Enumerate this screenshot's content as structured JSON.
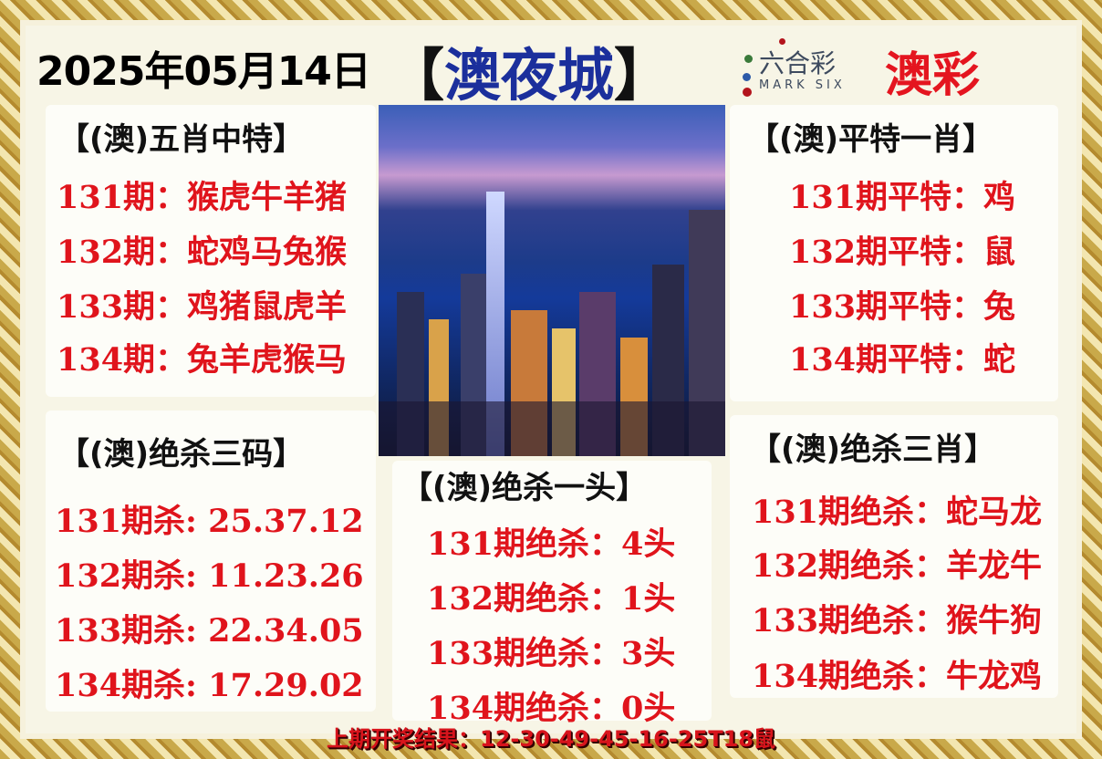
{
  "date": "2025年05月14日",
  "title": {
    "left_bracket": "【",
    "name": "澳夜城",
    "right_bracket": "】"
  },
  "logo": {
    "chinese": "六合彩",
    "english": "MARK SIX",
    "brand": "澳彩"
  },
  "panels": {
    "five_zodiac": {
      "header": "【(澳)五肖中特】",
      "rows": [
        "131期：猴虎牛羊猪",
        "132期：蛇鸡马兔猴",
        "133期：鸡猪鼠虎羊",
        "134期：兔羊虎猴马"
      ]
    },
    "flat_special": {
      "header": "【(澳)平特一肖】",
      "rows": [
        "131期平特：鸡",
        "132期平特：鼠",
        "133期平特：兔",
        "134期平特：蛇"
      ]
    },
    "kill_three_codes": {
      "header": "【(澳)绝杀三码】",
      "rows": [
        "131期杀: 25.37.12",
        "132期杀: 11.23.26",
        "133期杀: 22.34.05",
        "134期杀: 17.29.02"
      ]
    },
    "kill_one_head": {
      "header": "【(澳)绝杀一头】",
      "rows": [
        "131期绝杀：4头",
        "132期绝杀：1头",
        "133期绝杀：3头",
        "134期绝杀：0头"
      ]
    },
    "kill_three_zodiac": {
      "header": "【(澳)绝杀三肖】",
      "rows": [
        "131期绝杀：蛇马龙",
        "132期绝杀：羊龙牛",
        "133期绝杀：猴牛狗",
        "134期绝杀：牛龙鸡"
      ]
    }
  },
  "last_result": "上期开奖结果：12-30-49-45-16-25T18鼠",
  "colors": {
    "red": "#e0141c",
    "blue": "#1b2f9c",
    "cream": "#f7f5e6",
    "gold": "#c9a94a"
  }
}
